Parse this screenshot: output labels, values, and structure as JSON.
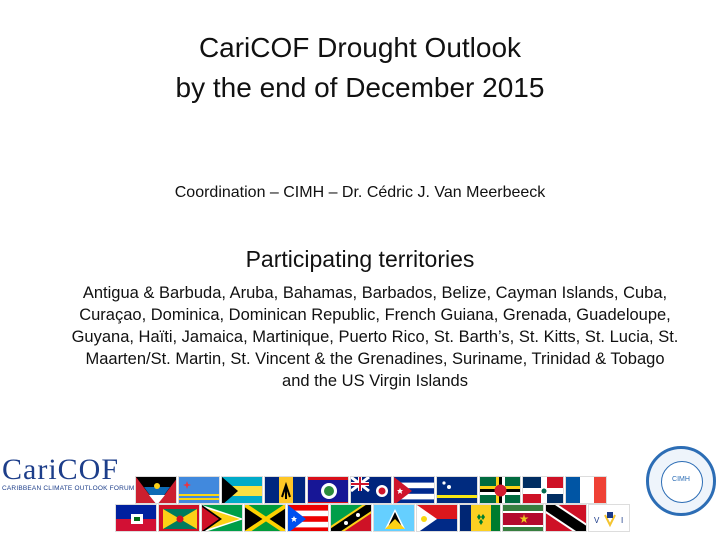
{
  "title": {
    "line1": "CariCOF Drought Outlook",
    "line2": "by the end of December 2015"
  },
  "coordination": "Coordination – CIMH – Dr. Cédric J. Van Meerbeeck",
  "participating_heading": "Participating territories",
  "countries": "Antigua & Barbuda, Aruba, Bahamas, Barbados, Belize, Cayman Islands, Cuba, Curaçao, Dominica, Dominican Republic, French Guiana, Grenada, Guadeloupe, Guyana, Haïti, Jamaica, Martinique, Puerto Rico, St. Barth’s, St. Kitts, St. Lucia, St. Maarten/St. Martin, St. Vincent & the Grenadines, Suriname, Trinidad & Tobago and the US Virgin Islands",
  "logo": {
    "name": "CariCOF",
    "tagline": "CARIBBEAN CLIMATE OUTLOOK FORUM"
  },
  "seal": {
    "text": "CIMH"
  },
  "colors": {
    "brand_blue": "#1d3e8a",
    "seal_blue": "#2c6db5"
  }
}
